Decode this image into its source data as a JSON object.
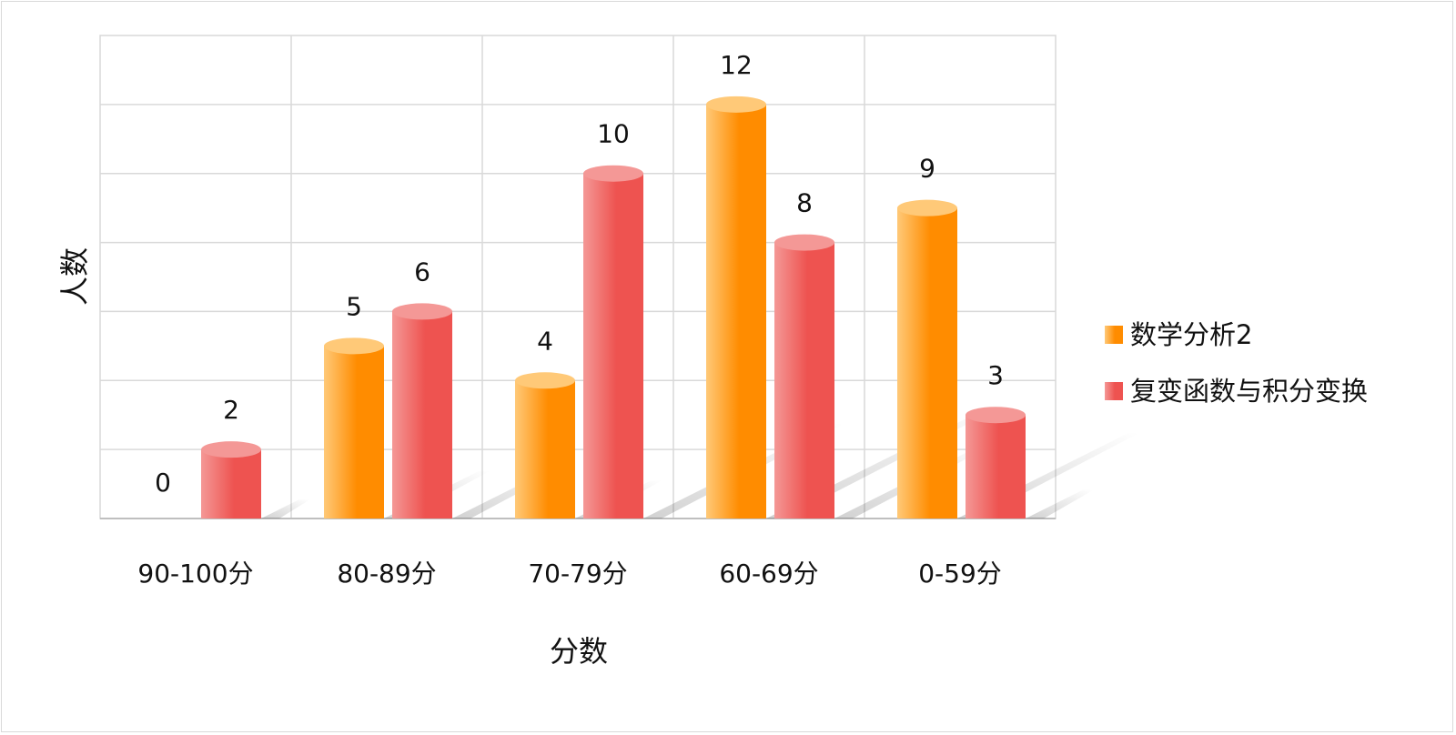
{
  "chart_data": {
    "type": "bar",
    "xlabel": "分数",
    "ylabel": "人数",
    "ylim": [
      0,
      14
    ],
    "y_grid_step": 2,
    "grid": true,
    "legend_position": "right",
    "categories": [
      "90-100分",
      "80-89分",
      "70-79分",
      "60-69分",
      "0-59分"
    ],
    "series": [
      {
        "name": "数学分析2",
        "values": [
          0,
          5,
          4,
          12,
          9
        ],
        "color": "#ff8c00",
        "color_light": "#ffc978"
      },
      {
        "name": "复变函数与积分变换",
        "values": [
          2,
          6,
          10,
          8,
          3
        ],
        "color": "#ee5350",
        "color_light": "#f49896"
      }
    ]
  }
}
